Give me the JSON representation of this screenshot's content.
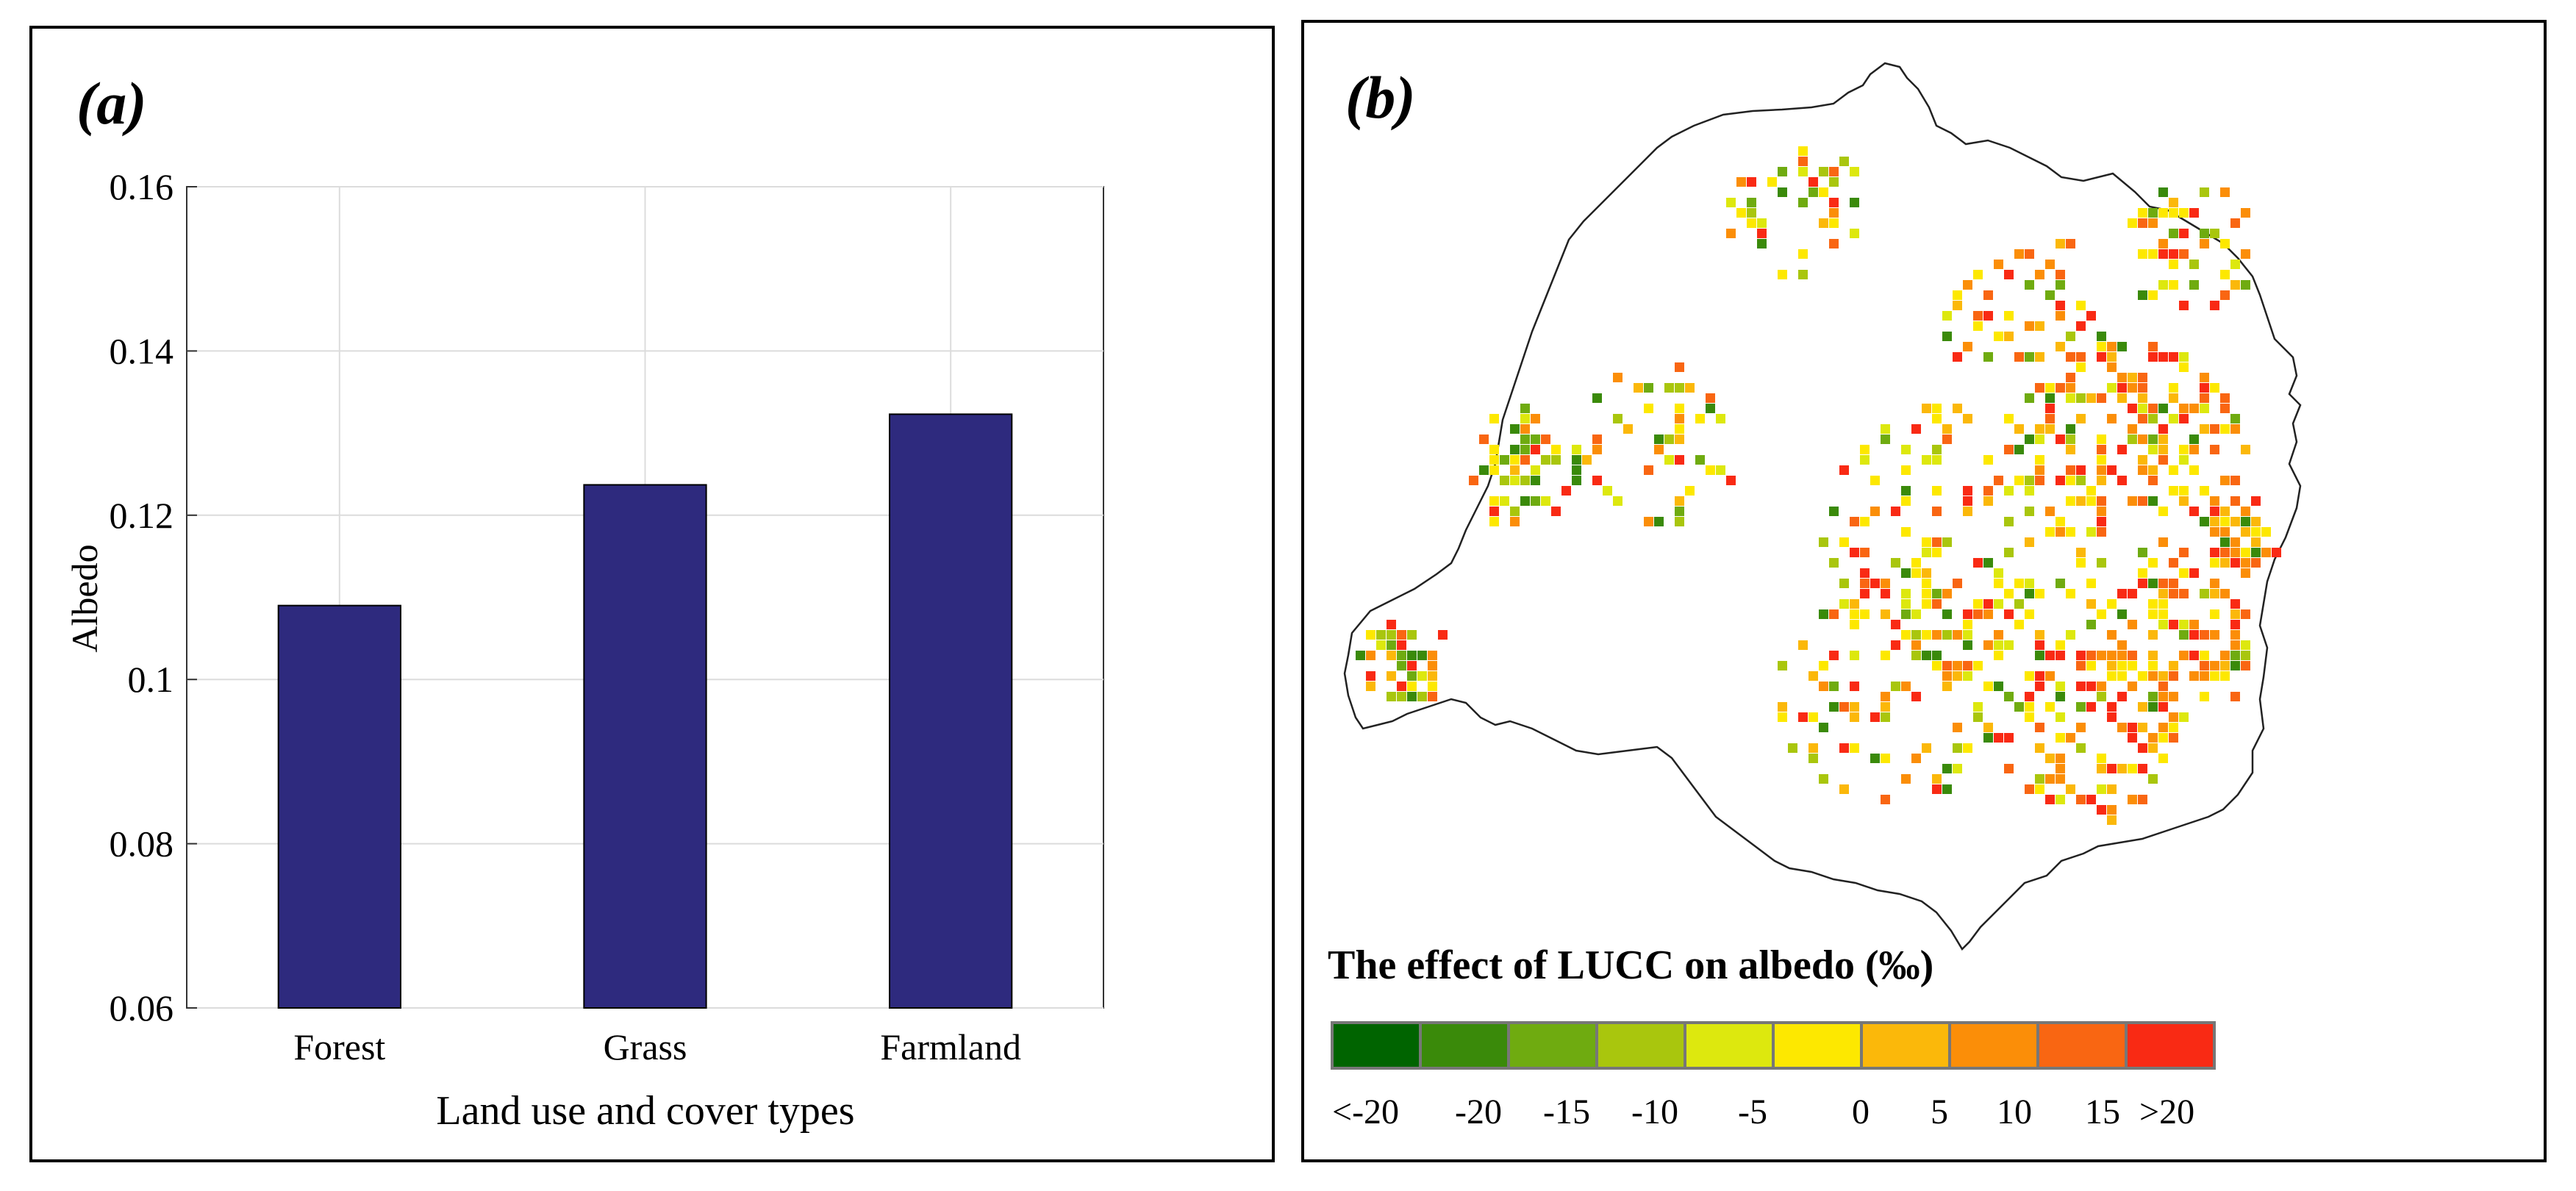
{
  "panel_a": {
    "label": "(a)",
    "chart_data": {
      "type": "bar",
      "categories": [
        "Forest",
        "Grass",
        "Farmland"
      ],
      "values": [
        0.109,
        0.1237,
        0.1323
      ],
      "xlabel": "Land use and cover types",
      "ylabel": "Albedo",
      "ylim": [
        0.06,
        0.16
      ],
      "yticks": [
        "0.06",
        "0.08",
        "0.1",
        "0.12",
        "0.14",
        "0.16"
      ],
      "ytick_values": [
        0.06,
        0.08,
        0.1,
        0.12,
        0.14,
        0.16
      ],
      "grid": true,
      "bar_color": "#2e2a7e"
    }
  },
  "panel_b": {
    "label": "(b)",
    "legend": {
      "title": "The effect of LUCC on albedo (‰)",
      "colors": [
        "#006400",
        "#3a8a0a",
        "#6fab10",
        "#a9c60d",
        "#dde80e",
        "#fde800",
        "#fbb80a",
        "#fb8e08",
        "#f96612",
        "#f92a14"
      ],
      "labels": [
        "<-20",
        "-20",
        "-15",
        "-10",
        "-5",
        "0",
        "5",
        "10",
        "15",
        ">20"
      ]
    }
  }
}
